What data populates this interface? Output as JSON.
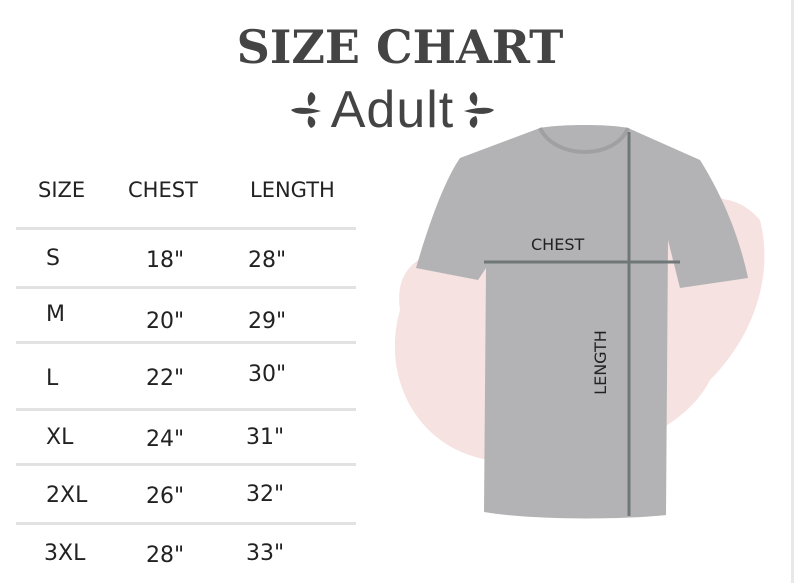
{
  "title": "SIZE CHART",
  "subtitle": "Adult",
  "table": {
    "headers": [
      "SIZE",
      "CHEST",
      "LENGTH"
    ],
    "rows": [
      {
        "size": "S",
        "chest": "18\"",
        "length": "28\""
      },
      {
        "size": "M",
        "chest": "20\"",
        "length": "29\""
      },
      {
        "size": "L",
        "chest": "22\"",
        "length": "30\""
      },
      {
        "size": "XL",
        "chest": "24\"",
        "length": "31\""
      },
      {
        "size": "2XL",
        "chest": "26\"",
        "length": "32\""
      },
      {
        "size": "3XL",
        "chest": "28\"",
        "length": "33\""
      }
    ]
  },
  "diagram": {
    "chest_label": "CHEST",
    "length_label": "LENGTH"
  },
  "colors": {
    "text": "#444444",
    "shirt": "#b3b3b5",
    "blush": "#f6e2e0",
    "guide": "#6f7778"
  }
}
